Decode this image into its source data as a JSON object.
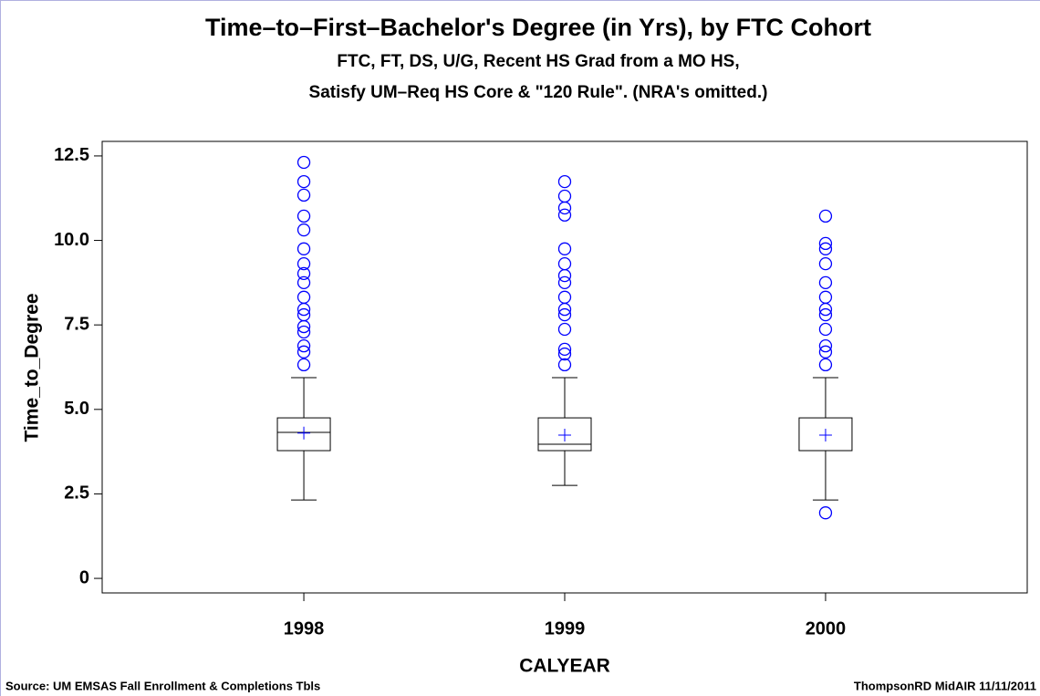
{
  "chart_data": {
    "type": "box",
    "title": "Time–to–First–Bachelor's Degree (in Yrs), by FTC Cohort",
    "subtitle": [
      "FTC, FT, DS, U/G, Recent HS Grad from a MO HS,",
      "Satisfy UM–Req HS Core & \"120 Rule\".   (NRA's omitted.)"
    ],
    "x_label": "CALYEAR",
    "y_label": "Time_to_Degree",
    "footnote_left": "Source:   UM EMSAS Fall Enrollment & Completions Tbls",
    "footnote_right": "ThompsonRD MidAIR 11/11/2011",
    "categories": [
      "1998",
      "1999",
      "2000"
    ],
    "box_color": "#000000",
    "outlier_color": "#0000ff",
    "boxes": [
      {
        "whisker_low": 2.32,
        "q1": 3.78,
        "median": 4.32,
        "q3": 4.75,
        "whisker_high": 5.94,
        "mean": 4.3,
        "outliers": [
          12.31,
          11.74,
          11.34,
          10.72,
          10.31,
          9.75,
          9.31,
          9.02,
          8.75,
          8.32,
          7.96,
          7.8,
          7.45,
          7.29,
          6.88,
          6.7,
          6.32
        ]
      },
      {
        "whisker_low": 2.75,
        "q1": 3.78,
        "median": 3.97,
        "q3": 4.75,
        "whisker_high": 5.94,
        "mean": 4.24,
        "outliers": [
          11.74,
          11.31,
          10.96,
          10.75,
          9.75,
          9.31,
          8.96,
          8.75,
          8.32,
          7.96,
          7.8,
          7.37,
          6.78,
          6.64,
          6.32
        ]
      },
      {
        "whisker_low": 2.32,
        "q1": 3.78,
        "median": 3.78,
        "q3": 4.75,
        "whisker_high": 5.94,
        "mean": 4.24,
        "outliers": [
          10.72,
          9.91,
          9.75,
          9.31,
          8.75,
          8.32,
          7.96,
          7.8,
          7.37,
          6.88,
          6.7,
          6.32,
          1.94
        ]
      }
    ],
    "ylim": [
      -0.43,
      12.93
    ],
    "yticks": [
      0,
      2.5,
      {
        "value": 5,
        "label": "5.0"
      },
      7.5,
      {
        "value": 10,
        "label": "10.0"
      },
      12.5
    ]
  }
}
